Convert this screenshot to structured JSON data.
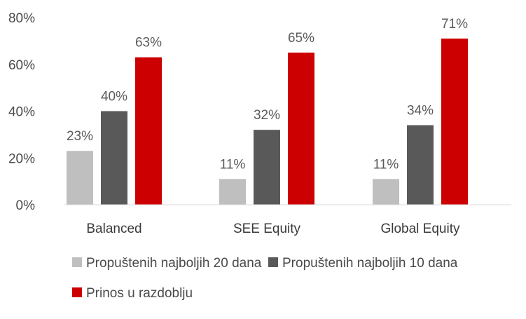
{
  "chart_data": {
    "type": "bar",
    "title": "",
    "xlabel": "",
    "ylabel": "",
    "categories": [
      "Balanced",
      "SEE Equity",
      "Global Equity"
    ],
    "series": [
      {
        "name": "Propuštenih najboljih 20 dana",
        "values": [
          23,
          11,
          11
        ],
        "labels": [
          "23%",
          "11%",
          "11%"
        ],
        "color": "#bfbfbf"
      },
      {
        "name": "Propuštenih najboljih 10 dana",
        "values": [
          40,
          32,
          34
        ],
        "labels": [
          "40%",
          "32%",
          "34%"
        ],
        "color": "#595959"
      },
      {
        "name": "Prinos u razdoblju",
        "values": [
          63,
          65,
          71
        ],
        "labels": [
          "63%",
          "65%",
          "71%"
        ],
        "color": "#cc0000"
      }
    ],
    "ylim": [
      0,
      80
    ],
    "yticks": [
      0,
      20,
      40,
      60,
      80
    ],
    "ytick_labels": [
      "0%",
      "20%",
      "40%",
      "60%",
      "80%"
    ],
    "grid": false,
    "legend_position": "bottom",
    "axis_color": "#d9d9d9"
  }
}
